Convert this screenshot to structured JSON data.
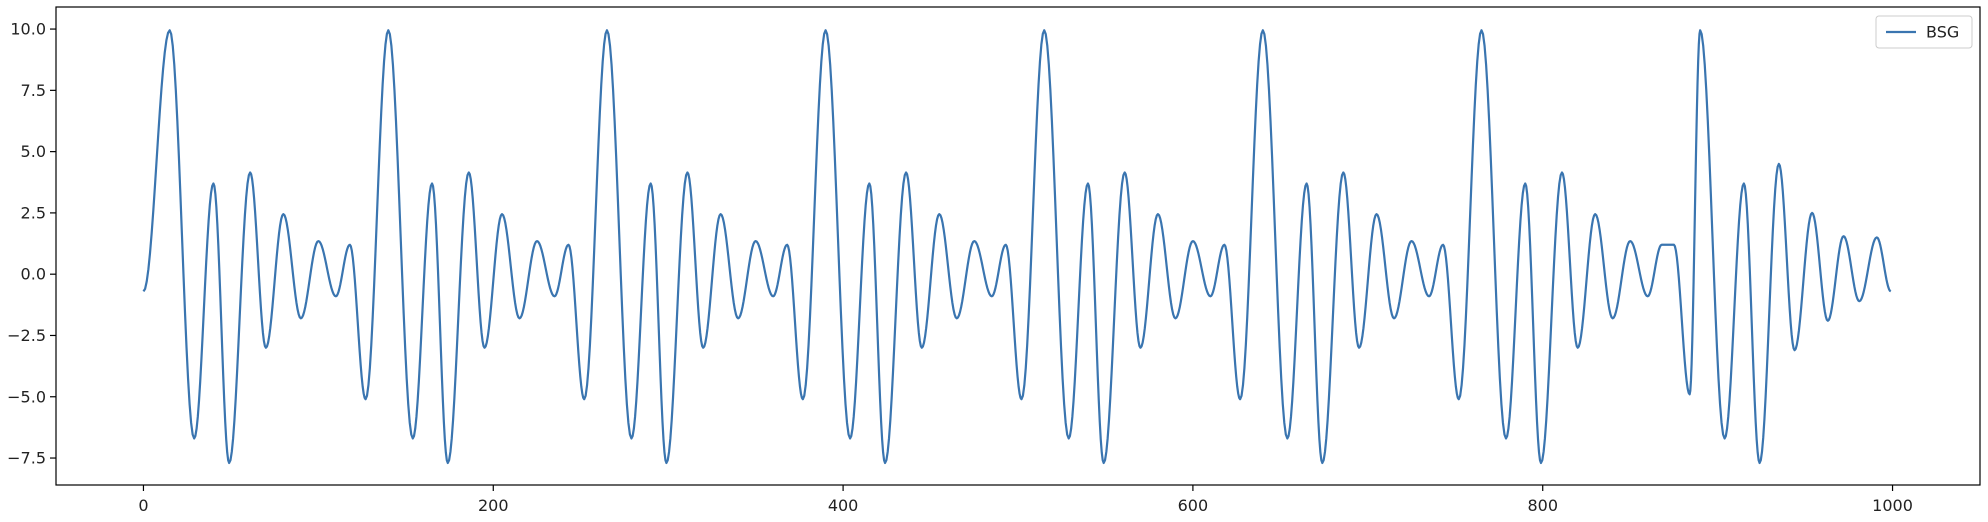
{
  "chart_data": {
    "type": "line",
    "title": "",
    "xlabel": "",
    "ylabel": "",
    "xlim": [
      -50,
      1050
    ],
    "ylim": [
      -8.6,
      10.9
    ],
    "xticks": [
      0,
      200,
      400,
      600,
      800,
      1000
    ],
    "xtick_labels": [
      "0",
      "200",
      "400",
      "600",
      "800",
      "1000"
    ],
    "yticks": [
      -7.5,
      -5.0,
      -2.5,
      0.0,
      2.5,
      5.0,
      7.5,
      10.0
    ],
    "ytick_labels": [
      "−7.5",
      "−5.0",
      "−2.5",
      "0.0",
      "2.5",
      "5.0",
      "7.5",
      "10.0"
    ],
    "grid": false,
    "legend_position": "top-right",
    "period": 125,
    "series": [
      {
        "name": "BSG",
        "color": "#3a75b0",
        "cycle_extrema": [
          {
            "x": 0,
            "y": -0.7
          },
          {
            "x": 15,
            "y": 9.95
          },
          {
            "x": 29,
            "y": -6.7
          },
          {
            "x": 40,
            "y": 3.7
          },
          {
            "x": 49,
            "y": -7.7
          },
          {
            "x": 61,
            "y": 4.15
          },
          {
            "x": 70,
            "y": -3.0
          },
          {
            "x": 80,
            "y": 2.45
          },
          {
            "x": 90,
            "y": -1.8
          },
          {
            "x": 100,
            "y": 1.35
          },
          {
            "x": 110,
            "y": -0.9
          },
          {
            "x": 118,
            "y": 1.2
          },
          {
            "x": 127,
            "y": -5.1
          }
        ],
        "final_segment": [
          {
            "x": 875,
            "y": 1.2
          },
          {
            "x": 884,
            "y": -4.9
          },
          {
            "x": 890,
            "y": 9.95
          },
          {
            "x": 904,
            "y": -6.7
          },
          {
            "x": 915,
            "y": 3.7
          },
          {
            "x": 924,
            "y": -7.7
          },
          {
            "x": 935,
            "y": 4.5
          },
          {
            "x": 944,
            "y": -3.1
          },
          {
            "x": 954,
            "y": 2.5
          },
          {
            "x": 963,
            "y": -1.9
          },
          {
            "x": 972,
            "y": 1.55
          },
          {
            "x": 981,
            "y": -1.1
          },
          {
            "x": 991,
            "y": 1.5
          },
          {
            "x": 999,
            "y": -0.7
          }
        ]
      }
    ]
  }
}
